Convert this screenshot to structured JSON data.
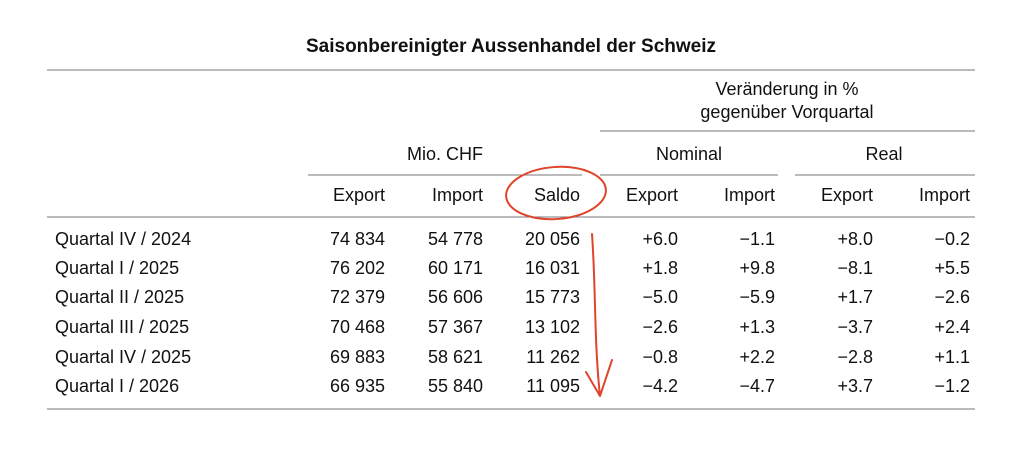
{
  "title": "Saisonbereinigter Aussenhandel der Schweiz",
  "header": {
    "change_lines": [
      "Veränderung in %",
      "gegenüber Vorquartal"
    ],
    "groups": [
      "Mio. CHF",
      "Nominal",
      "Real"
    ],
    "columns": [
      "Export",
      "Import",
      "Saldo",
      "Export",
      "Import",
      "Export",
      "Import"
    ]
  },
  "table": {
    "rows": [
      [
        "Quartal IV / 2024",
        "74 834",
        "54 778",
        "20 056",
        "+6.0",
        "−1.1",
        "+8.0",
        "−0.2"
      ],
      [
        "Quartal I / 2025",
        "76 202",
        "60 171",
        "16 031",
        "+1.8",
        "+9.8",
        "−8.1",
        "+5.5"
      ],
      [
        "Quartal II / 2025",
        "72 379",
        "56 606",
        "15 773",
        "−5.0",
        "−5.9",
        "+1.7",
        "−2.6"
      ],
      [
        "Quartal III / 2025",
        "70 468",
        "57 367",
        "13 102",
        "−2.6",
        "+1.3",
        "−3.7",
        "+2.4"
      ],
      [
        "Quartal IV / 2025",
        "69 883",
        "58 621",
        "11 262",
        "−0.8",
        "+2.2",
        "−2.8",
        "+1.1"
      ],
      [
        "Quartal I / 2026",
        "66 935",
        "55 840",
        "11 095",
        "−4.2",
        "−4.7",
        "+3.7",
        "−1.2"
      ]
    ]
  }
}
